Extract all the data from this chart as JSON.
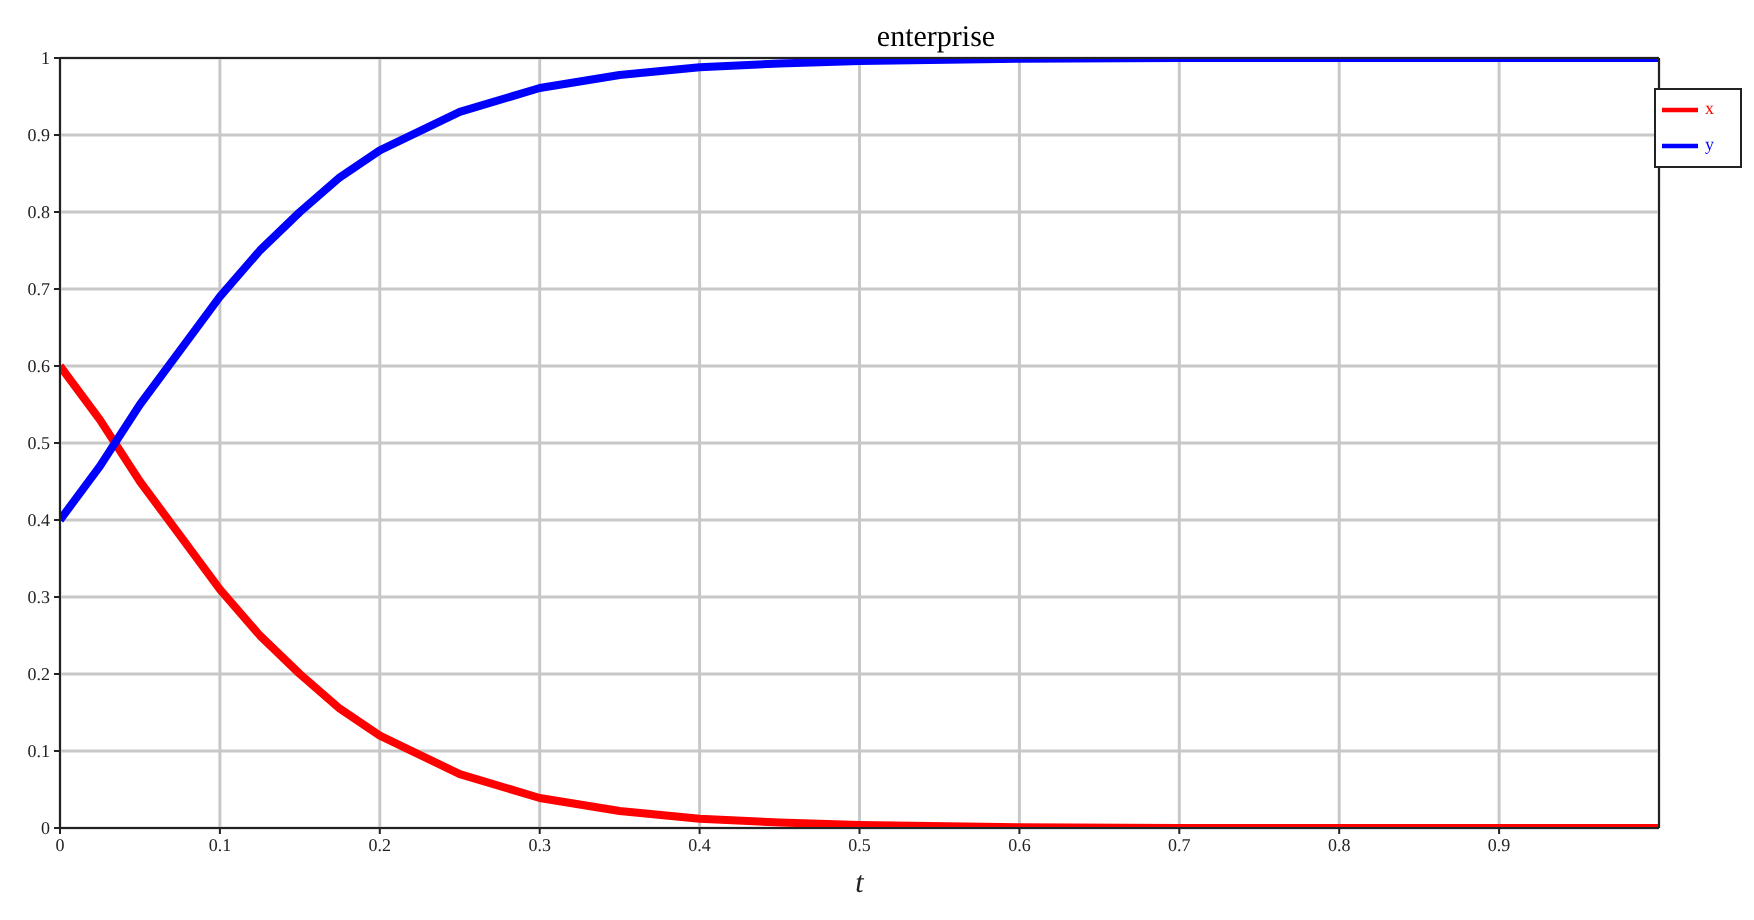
{
  "chart_data": {
    "type": "line",
    "title": "enterprise",
    "xlabel": "t",
    "x": [
      0,
      0.025,
      0.05,
      0.075,
      0.1,
      0.125,
      0.15,
      0.175,
      0.2,
      0.25,
      0.3,
      0.35,
      0.4,
      0.45,
      0.5,
      0.6,
      0.7,
      0.8,
      0.9,
      1
    ],
    "series": [
      {
        "name": "x",
        "color": "#ff0000",
        "values": [
          0.6,
          0.53,
          0.45,
          0.38,
          0.31,
          0.25,
          0.2,
          0.155,
          0.12,
          0.07,
          0.039,
          0.022,
          0.012,
          0.007,
          0.004,
          0.001,
          0,
          0,
          0,
          0
        ]
      },
      {
        "name": "y",
        "color": "#0000ff",
        "values": [
          0.4,
          0.47,
          0.55,
          0.62,
          0.69,
          0.75,
          0.8,
          0.845,
          0.88,
          0.93,
          0.961,
          0.978,
          0.988,
          0.993,
          0.996,
          0.999,
          1,
          1,
          1,
          1
        ]
      }
    ],
    "xlim": [
      0,
      1
    ],
    "xticks": [
      0,
      0.1,
      0.2,
      0.3,
      0.4,
      0.5,
      0.6,
      0.7,
      0.8,
      0.9
    ],
    "ylim": [
      0,
      1
    ],
    "yticks": [
      0,
      0.1,
      0.2,
      0.3,
      0.4,
      0.5,
      0.6,
      0.7,
      0.8,
      0.9,
      1
    ],
    "grid": true,
    "legend": "top right",
    "marker": "none",
    "line_style": "solid"
  }
}
